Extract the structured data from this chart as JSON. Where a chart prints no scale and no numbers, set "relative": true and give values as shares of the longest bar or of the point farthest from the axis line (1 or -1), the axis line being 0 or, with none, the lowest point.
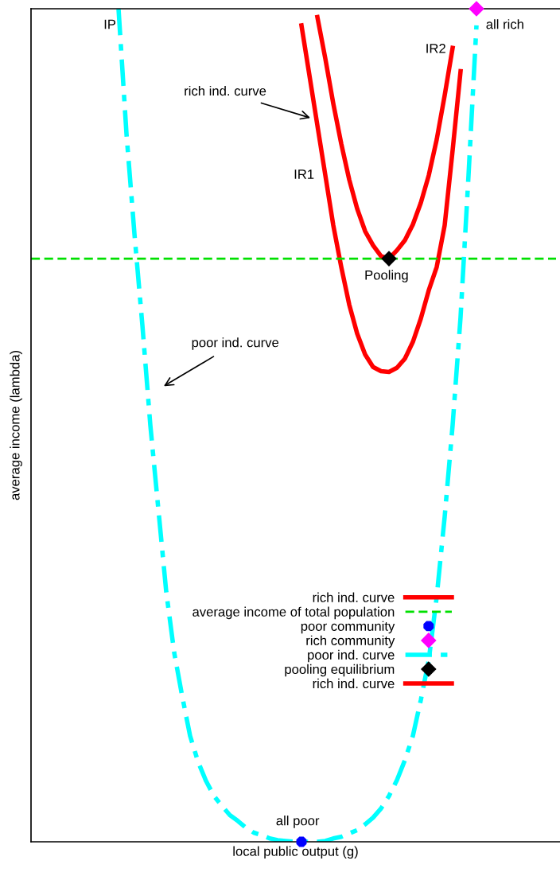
{
  "chart_data": {
    "type": "line",
    "relative": true,
    "xlabel": "local public output (g)",
    "ylabel": "average income (lambda)",
    "categories": [
      null,
      null,
      null,
      null,
      null,
      null,
      null,
      null,
      null,
      null,
      null,
      null,
      null,
      null,
      null,
      null,
      null,
      null,
      null,
      null,
      null,
      null,
      null,
      null,
      null,
      null,
      null,
      null,
      null,
      null,
      null,
      null,
      null,
      null,
      null,
      null,
      null,
      null,
      null,
      null,
      null,
      null,
      null,
      null,
      null,
      null,
      null,
      null,
      null,
      null,
      null,
      null,
      null,
      null,
      null,
      null,
      null,
      null,
      null,
      null,
      null,
      null,
      null,
      null,
      null,
      null,
      null
    ],
    "series": [
      {
        "name": "rich ind. curve",
        "color": "#ff0000",
        "line_style": "solid",
        "values": [
          null,
          null,
          null,
          null,
          null,
          null,
          null,
          null,
          null,
          null,
          null,
          null,
          null,
          null,
          null,
          null,
          null,
          null,
          null,
          null,
          null,
          null,
          null,
          null,
          null,
          null,
          null,
          null,
          null,
          null,
          null,
          null,
          null,
          null,
          0.98,
          0.92,
          0.86,
          0.8,
          0.74,
          0.69,
          0.645,
          0.61,
          0.585,
          0.57,
          0.565,
          0.564,
          0.569,
          0.58,
          0.6,
          0.628,
          0.662,
          0.69,
          0.74,
          0.83,
          0.925,
          null,
          null,
          null,
          null,
          null,
          null,
          null,
          null,
          null,
          null,
          null,
          null
        ]
      },
      {
        "name": "average income of total population",
        "type": "line",
        "color": "#00e000",
        "line_style": "dashed",
        "values": [
          0.7,
          0.7,
          0.7,
          0.7,
          0.7,
          0.7,
          0.7,
          0.7,
          0.7,
          0.7,
          0.7,
          0.7,
          0.7,
          0.7,
          0.7,
          0.7,
          0.7,
          0.7,
          0.7,
          0.7,
          0.7,
          0.7,
          0.7,
          0.7,
          0.7,
          0.7,
          0.7,
          0.7,
          0.7,
          0.7,
          0.7,
          0.7,
          0.7,
          0.7,
          0.7,
          0.7,
          0.7,
          0.7,
          0.7,
          0.7,
          0.7,
          0.7,
          0.7,
          0.7,
          0.7,
          0.7,
          0.7,
          0.7,
          0.7,
          0.7,
          0.7,
          0.7,
          0.7,
          0.7,
          0.7,
          0.7,
          0.7,
          0.7,
          0.7,
          0.7,
          0.7,
          0.7,
          0.7,
          0.7,
          0.7,
          0.7,
          0.7
        ]
      },
      {
        "name": "poor community",
        "color": "#0000ff",
        "line_style": "none",
        "marker": "circle",
        "values": [
          null,
          null,
          null,
          null,
          null,
          null,
          null,
          null,
          null,
          null,
          null,
          null,
          null,
          null,
          null,
          null,
          null,
          null,
          null,
          null,
          null,
          null,
          null,
          null,
          null,
          null,
          null,
          null,
          null,
          null,
          null,
          null,
          null,
          null,
          0,
          null,
          null,
          null,
          null,
          null,
          null,
          null,
          null,
          null,
          null,
          null,
          null,
          null,
          null,
          null,
          null,
          null,
          null,
          null,
          null,
          null,
          null,
          null,
          null,
          null,
          null,
          null,
          null,
          null,
          null,
          null,
          null
        ]
      },
      {
        "name": "rich community",
        "color": "#ff00ff",
        "line_style": "none",
        "marker": "diamond",
        "values": [
          null,
          null,
          null,
          null,
          null,
          null,
          null,
          null,
          null,
          null,
          null,
          null,
          null,
          null,
          null,
          null,
          null,
          null,
          null,
          null,
          null,
          null,
          null,
          null,
          null,
          null,
          null,
          null,
          null,
          null,
          null,
          null,
          null,
          null,
          null,
          null,
          null,
          null,
          null,
          null,
          null,
          null,
          null,
          null,
          null,
          null,
          null,
          null,
          null,
          null,
          null,
          null,
          null,
          null,
          null,
          null,
          1,
          null,
          null,
          null,
          null,
          null,
          null,
          null,
          null,
          null,
          null
        ]
      },
      {
        "name": "poor ind. curve",
        "type": "line",
        "color": "#00ffff",
        "line_style": "dashdot",
        "values": [
          null,
          null,
          null,
          null,
          null,
          null,
          null,
          null,
          null,
          null,
          null,
          1,
          0.85,
          0.73,
          0.62,
          0.5,
          0.4,
          0.3,
          0.227,
          0.175,
          0.127,
          0.096,
          0.073,
          0.055,
          0.043,
          0.032,
          0.025,
          0.017,
          0.011,
          0.008,
          0.004,
          0.002,
          0.001,
          0,
          0,
          0,
          0,
          0.001,
          0.004,
          0.006,
          0.01,
          0.014,
          0.021,
          0.029,
          0.04,
          0.055,
          0.074,
          0.098,
          0.127,
          0.17,
          0.218,
          0.294,
          0.39,
          0.5,
          0.63,
          0.8,
          0.98,
          null,
          null,
          null,
          null,
          null,
          null,
          null,
          null,
          null,
          null
        ]
      },
      {
        "name": "pooling equilibrium",
        "color": "#000000",
        "line_style": "none",
        "marker": "diamond",
        "values": [
          null,
          null,
          null,
          null,
          null,
          null,
          null,
          null,
          null,
          null,
          null,
          null,
          null,
          null,
          null,
          null,
          null,
          null,
          null,
          null,
          null,
          null,
          null,
          null,
          null,
          null,
          null,
          null,
          null,
          null,
          null,
          null,
          null,
          null,
          null,
          null,
          null,
          null,
          null,
          null,
          null,
          null,
          null,
          null,
          null,
          0.7,
          null,
          null,
          null,
          null,
          null,
          null,
          null,
          null,
          null,
          null,
          null,
          null,
          null,
          null,
          null,
          null,
          null,
          null,
          null,
          null,
          null
        ]
      },
      {
        "name": "rich ind. curve",
        "type": "line",
        "color": "#ff0000",
        "line_style": "solid",
        "values": [
          null,
          null,
          null,
          null,
          null,
          null,
          null,
          null,
          null,
          null,
          null,
          null,
          null,
          null,
          null,
          null,
          null,
          null,
          null,
          null,
          null,
          null,
          null,
          null,
          null,
          null,
          null,
          null,
          null,
          null,
          null,
          null,
          null,
          null,
          null,
          null,
          0.99,
          0.94,
          0.886,
          0.838,
          0.795,
          0.76,
          0.733,
          0.716,
          0.703,
          0.7,
          0.71,
          0.722,
          0.741,
          0.767,
          0.8,
          0.843,
          0.896,
          0.953,
          null,
          null,
          null,
          null,
          null,
          null,
          null,
          null,
          null,
          null,
          null,
          null,
          null
        ]
      }
    ],
    "annotations": [
      "IP",
      "all rich",
      "IR2",
      "rich ind. curve",
      "IR1",
      "Pooling",
      "poor ind. curve",
      "all poor"
    ],
    "legend": "bottom"
  }
}
